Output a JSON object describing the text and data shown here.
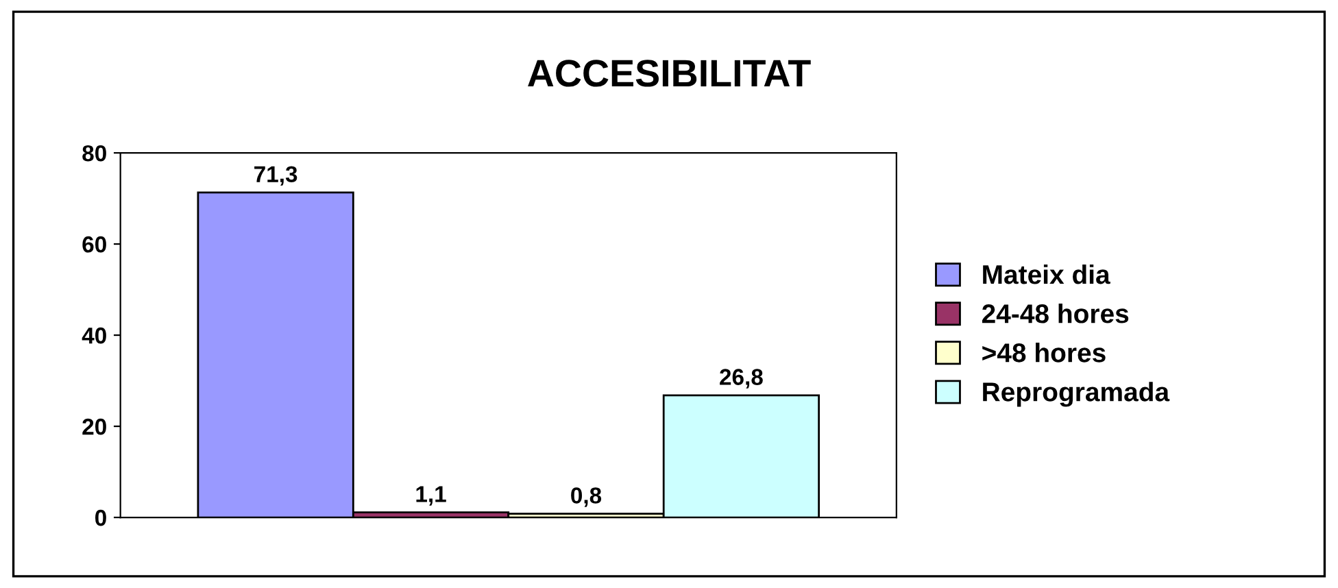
{
  "chart_data": {
    "type": "bar",
    "title": "ACCESIBILITAT",
    "categories": [
      null,
      null,
      null,
      null
    ],
    "series": [
      {
        "name": "Mateix dia",
        "color": "#9999ff",
        "values": [
          71.3,
          null,
          null,
          null
        ],
        "value_labels": [
          "71,3",
          null,
          null,
          null
        ]
      },
      {
        "name": "24-48 hores",
        "color": "#993366",
        "values": [
          null,
          1.1,
          null,
          null
        ],
        "value_labels": [
          null,
          "1,1",
          null,
          null
        ]
      },
      {
        "name": ">48 hores",
        "color": "#ffffcc",
        "values": [
          null,
          null,
          0.8,
          null
        ],
        "value_labels": [
          null,
          null,
          "0,8",
          null
        ]
      },
      {
        "name": "Reprogramada",
        "color": "#ccffff",
        "values": [
          null,
          null,
          null,
          26.8
        ],
        "value_labels": [
          null,
          null,
          null,
          "26,8"
        ]
      }
    ],
    "ylim": [
      0,
      80
    ],
    "yticks": [
      0,
      20,
      40,
      60,
      80
    ],
    "grid": false,
    "legend": "right"
  }
}
